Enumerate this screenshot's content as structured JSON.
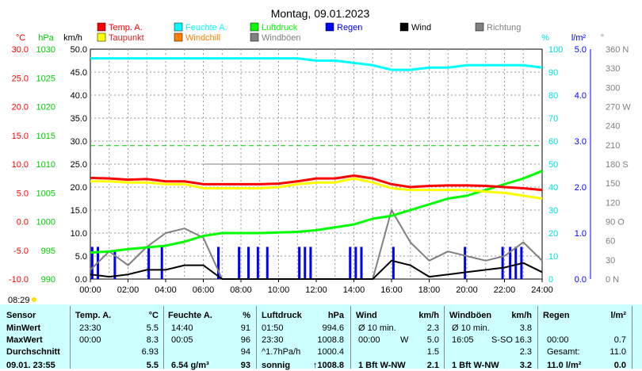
{
  "chart_data": {
    "type": "line",
    "title": "Montag, 09.01.2023",
    "x_ticks": [
      "00:00",
      "02:00",
      "04:00",
      "06:00",
      "08:00",
      "10:00",
      "12:00",
      "14:00",
      "16:00",
      "18:00",
      "20:00",
      "22:00",
      "24:00"
    ],
    "axes": {
      "temp": {
        "unit": "°C",
        "min": -10,
        "max": 30,
        "ticks": [
          "30.0",
          "25.0",
          "20.0",
          "15.0",
          "10.0",
          "5.0",
          "0.0",
          "-5.0",
          "-10.0"
        ],
        "color": "#ff0000"
      },
      "pressure": {
        "unit": "hPa",
        "min": 990,
        "max": 1030,
        "ticks": [
          "1030",
          "1025",
          "1020",
          "1015",
          "1010",
          "1005",
          "1000",
          "995",
          "990"
        ],
        "color": "#00cc00"
      },
      "wind": {
        "unit": "km/h",
        "min": 0,
        "max": 50,
        "ticks": [
          "50.0",
          "45.0",
          "40.0",
          "35.0",
          "30.0",
          "25.0",
          "20.0",
          "15.0",
          "10.0",
          "5.0",
          "0.0"
        ],
        "color": "#000000"
      },
      "humidity": {
        "unit": "%",
        "min": 0,
        "max": 100,
        "ticks": [
          "100",
          "90",
          "80",
          "70",
          "60",
          "50",
          "40",
          "30",
          "20",
          "10",
          "0"
        ],
        "color": "#00e0e0"
      },
      "rain": {
        "unit": "l/m²",
        "min": 0,
        "max": 5,
        "ticks": [
          "5.0",
          "4.0",
          "3.0",
          "2.0",
          "1.0",
          "0.0"
        ],
        "color": "#0000ff"
      },
      "direction": {
        "unit": "°",
        "min": 0,
        "max": 360,
        "ticks": [
          "360 N",
          "330",
          "300",
          "270 W",
          "240",
          "210",
          "180 S",
          "150",
          "120",
          "90 O",
          "60",
          "30",
          "0 N"
        ],
        "color": "#808080"
      }
    },
    "legend": [
      {
        "label": "Temp. A.",
        "color": "#ff0000"
      },
      {
        "label": "Feuchte A.",
        "color": "#00ffff"
      },
      {
        "label": "Luftdruck",
        "color": "#00ff00"
      },
      {
        "label": "Regen",
        "color": "#0000ff"
      },
      {
        "label": "Wind",
        "color": "#000000"
      },
      {
        "label": "Richtung",
        "color": "#808080"
      },
      {
        "label": "Taupunkt",
        "color": "#ffff00"
      },
      {
        "label": "Windchill",
        "color": "#ff8000"
      },
      {
        "label": "Windböen",
        "color": "#808080"
      }
    ],
    "x_hours": [
      0,
      1,
      2,
      3,
      4,
      5,
      6,
      7,
      8,
      9,
      10,
      11,
      12,
      13,
      14,
      15,
      16,
      17,
      18,
      19,
      20,
      21,
      22,
      23,
      24
    ],
    "series": [
      {
        "name": "Temp. A.",
        "axis": "temp",
        "color": "#ff0000",
        "values": [
          7.6,
          7.5,
          7.3,
          7.4,
          7.0,
          7.0,
          6.5,
          6.5,
          6.5,
          6.5,
          6.6,
          7.0,
          7.5,
          7.5,
          8.0,
          7.5,
          6.5,
          6.0,
          6.2,
          6.3,
          6.3,
          6.2,
          6.0,
          5.8,
          5.5
        ]
      },
      {
        "name": "Taupunkt",
        "axis": "temp",
        "color": "#ffff00",
        "values": [
          7.0,
          7.0,
          6.8,
          6.8,
          6.5,
          6.5,
          5.8,
          5.8,
          5.8,
          5.8,
          6.0,
          6.5,
          6.8,
          6.8,
          7.5,
          6.8,
          5.8,
          5.5,
          5.5,
          5.5,
          5.5,
          5.2,
          5.0,
          4.5,
          4.0
        ]
      },
      {
        "name": "Feuchte A.",
        "axis": "humidity",
        "color": "#00ffff",
        "values": [
          96,
          96,
          96,
          96,
          96,
          96,
          96,
          96,
          96,
          96,
          96,
          96,
          95,
          95,
          94,
          93,
          91,
          91,
          92,
          92,
          93,
          93,
          93,
          93,
          92
        ]
      },
      {
        "name": "Luftdruck",
        "axis": "pressure",
        "color": "#00ff00",
        "values": [
          994.6,
          994.8,
          995.2,
          995.5,
          995.8,
          996.5,
          997.5,
          998.0,
          998.0,
          998.0,
          998.1,
          998.2,
          998.5,
          999.0,
          999.5,
          1000.5,
          1001.0,
          1002.0,
          1003.0,
          1004.0,
          1004.5,
          1005.5,
          1006.5,
          1007.5,
          1008.8
        ]
      },
      {
        "name": "Wind",
        "axis": "wind",
        "color": "#000000",
        "values": [
          1.0,
          0.5,
          1.0,
          2.0,
          2.0,
          3.0,
          3.0,
          0,
          0,
          0,
          0,
          0,
          0,
          0,
          0,
          0,
          4.0,
          3.0,
          0.5,
          1.0,
          1.5,
          2.0,
          2.5,
          3.5,
          1.5
        ]
      },
      {
        "name": "Windböen",
        "axis": "wind",
        "color": "#808080",
        "values": [
          2.0,
          6.0,
          3.0,
          7.0,
          10.0,
          11.0,
          9.0,
          0,
          0,
          0,
          0,
          0,
          0,
          0,
          0,
          0,
          15.0,
          8.0,
          4.0,
          6.0,
          5.0,
          4.0,
          5.0,
          8.0,
          4.0
        ]
      },
      {
        "name": "Regen",
        "axis": "rain",
        "color": "#0000ff",
        "type": "bars",
        "x": [
          0.1,
          0.4,
          1.3,
          3.1,
          3.8,
          6.8,
          7.9,
          8.4,
          8.9,
          9.4,
          11.1,
          11.4,
          11.7,
          13.8,
          14.1,
          14.4,
          16.1,
          19.9,
          21.9,
          22.3,
          22.6,
          22.9
        ],
        "values": [
          0.7,
          0.7,
          0.6,
          0.7,
          0.7,
          0.7,
          0.7,
          0.7,
          0.7,
          0.7,
          0.7,
          0.7,
          0.7,
          0.7,
          0.7,
          0.7,
          0.7,
          0.7,
          0.7,
          0.7,
          0.7,
          0.7
        ]
      }
    ],
    "reference_lines": [
      {
        "axis": "wind",
        "value": 29.0,
        "color": "#00cc00",
        "style": "dashed"
      },
      {
        "axis": "wind",
        "value": 25.0,
        "color": "#808080",
        "style": "solid",
        "from_hour": 6.0,
        "to_hour": 15.1
      }
    ],
    "grid": true
  },
  "extras": {
    "sunrise_time": "08:29"
  },
  "table": {
    "headers": {
      "sensor": "Sensor",
      "temp": "Temp. A.",
      "temp_unit": "°C",
      "hum": "Feuchte A.",
      "hum_unit": "%",
      "press": "Luftdruck",
      "press_unit": "hPa",
      "wind": "Wind",
      "wind_unit": "km/h",
      "gust": "Windböen",
      "gust_unit": "km/h",
      "rain": "Regen",
      "rain_unit": "l/m²"
    },
    "rows": [
      {
        "label": "MinWert",
        "temp_time": "23:30",
        "temp_val": "5.5",
        "hum_time": "14:40",
        "hum_val": "91",
        "press_time": "01:50",
        "press_val": "994.6",
        "wind_a": "Ø 10 min.",
        "wind_val": "2.3",
        "gust_a": "Ø 10 min.",
        "gust_val": "3.8",
        "rain_a": "",
        "rain_val": ""
      },
      {
        "label": "MaxWert",
        "temp_time": "00:00",
        "temp_val": "8.3",
        "hum_time": "00:05",
        "hum_val": "96",
        "press_time": "23:30",
        "press_val": "1008.8",
        "wind_a": "00:00",
        "wind_b": "W",
        "wind_val": "5.0",
        "gust_a": "16:05",
        "gust_b": "S-SO",
        "gust_val": "16.3",
        "rain_a": "00:00",
        "rain_val": "0.7"
      },
      {
        "label": "Durchschnitt",
        "temp_time": "",
        "temp_val": "6.93",
        "hum_time": "",
        "hum_val": "94",
        "press_time": "^1.7hPa/h",
        "press_val": "1000.4",
        "wind_a": "",
        "wind_val": "1.5",
        "gust_a": "",
        "gust_val": "2.3",
        "rain_a": "Gesamt:",
        "rain_val": "11.0"
      },
      {
        "label": "09.01. 23:55",
        "temp_time": "",
        "temp_val": "5.5",
        "hum_time": "6.54 g/m³",
        "hum_val": "93",
        "press_time": "sonnig",
        "press_val": "↑1008.8",
        "wind_a": "1 Bft W-NW",
        "wind_val": "2.1",
        "gust_a": "1 Bft W-NW",
        "gust_val": "3.2",
        "rain_a": "11.0 l/m²",
        "rain_val": "0.0"
      }
    ]
  }
}
